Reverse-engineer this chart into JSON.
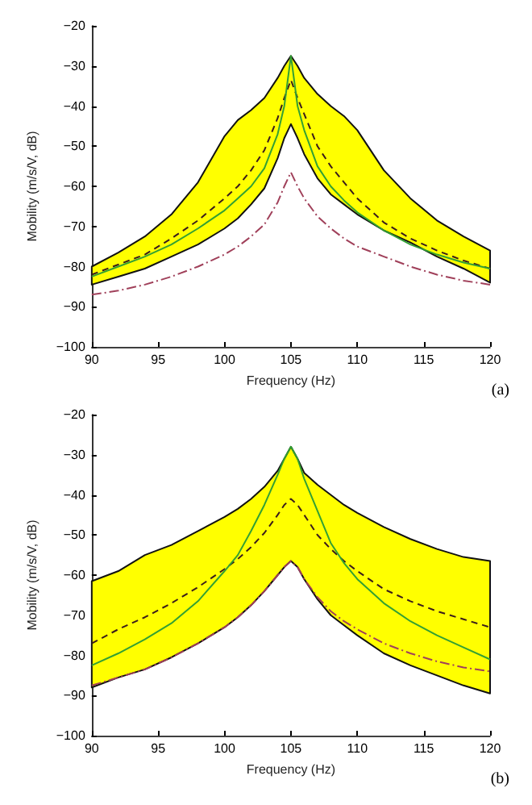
{
  "chart_data": [
    {
      "type": "line",
      "xlabel": "Frequency (Hz)",
      "ylabel": "Mobility (m/s/V, dB)",
      "annotations": [
        "(a)"
      ],
      "x": [
        90,
        92,
        94,
        96,
        98,
        100,
        101,
        102,
        103,
        104,
        104.5,
        105,
        105.5,
        106,
        107,
        108,
        109,
        110,
        112,
        114,
        116,
        118,
        120
      ],
      "xlim": [
        90,
        120
      ],
      "xticks": [
        90,
        95,
        100,
        105,
        110,
        115,
        120
      ],
      "ylim": [
        -100,
        -20
      ],
      "yticks": [
        -100,
        -90,
        -80,
        -70,
        -60,
        -50,
        -40,
        -30,
        -20
      ],
      "grid": false,
      "marker": "none",
      "series": [
        {
          "color": "#3a1c1c",
          "line_style": "dashed",
          "values": [
            -82,
            -79.5,
            -77,
            -73,
            -68.5,
            -63,
            -60,
            -56,
            -51,
            -43,
            -38,
            -33.5,
            -38,
            -42,
            -50,
            -55,
            -59,
            -63,
            -69,
            -73,
            -76,
            -78.5,
            -80.5
          ],
          "lower": [
            -84.5,
            -82.5,
            -80.5,
            -77.5,
            -74.5,
            -70.5,
            -68,
            -64.5,
            -60.5,
            -53,
            -48,
            -44.5,
            -48,
            -52,
            -58,
            -62,
            -64.5,
            -67,
            -71,
            -74,
            -77.5,
            -80.5,
            -84
          ],
          "upper": [
            -80,
            -76.5,
            -72.5,
            -67,
            -59,
            -47.5,
            -43.5,
            -41,
            -38,
            -33,
            -30,
            -27.5,
            -30,
            -33,
            -37,
            -40,
            -42.5,
            -46,
            -56,
            -63,
            -68.5,
            -72.5,
            -76
          ]
        },
        {
          "color": "#33a033",
          "line_style": "solid",
          "values": [
            -82.5,
            -80,
            -77.5,
            -74.5,
            -70.5,
            -66,
            -63,
            -60,
            -55.5,
            -47,
            -40,
            -27.5,
            -40,
            -46,
            -55,
            -60,
            -63.5,
            -66.5,
            -71,
            -74.5,
            -77,
            -79,
            -80.5
          ]
        },
        {
          "color": "#a0405a",
          "line_style": "dashdot",
          "values": [
            -87,
            -86,
            -84.5,
            -82.5,
            -80,
            -77,
            -75,
            -72.5,
            -69.5,
            -64,
            -60,
            -56.5,
            -60,
            -63,
            -67.5,
            -70.5,
            -73,
            -75,
            -77.5,
            -80,
            -82,
            -83.5,
            -84.5
          ]
        }
      ]
    },
    {
      "type": "line",
      "xlabel": "Frequency (Hz)",
      "ylabel": "Mobility (m/s/V, dB)",
      "annotations": [
        "(b)"
      ],
      "x": [
        90,
        92,
        94,
        96,
        98,
        100,
        101,
        102,
        103,
        104,
        104.5,
        105,
        105.5,
        106,
        107,
        108,
        109,
        110,
        112,
        114,
        116,
        118,
        120
      ],
      "xlim": [
        90,
        120
      ],
      "xticks": [
        90,
        95,
        100,
        105,
        110,
        115,
        120
      ],
      "ylim": [
        -100,
        -20
      ],
      "yticks": [
        -100,
        -90,
        -80,
        -70,
        -60,
        -50,
        -40,
        -30,
        -20
      ],
      "grid": false,
      "marker": "none",
      "series": [
        {
          "color": "#3a1c1c",
          "line_style": "dashed",
          "values": [
            -77,
            -73.5,
            -70.5,
            -67,
            -63,
            -58.5,
            -56,
            -53,
            -49.5,
            -45,
            -42.5,
            -41,
            -42.5,
            -45,
            -50,
            -53.5,
            -56.5,
            -59,
            -63.5,
            -66.5,
            -69,
            -71,
            -73
          ],
          "lower": [
            -88,
            -85.5,
            -83.5,
            -80.5,
            -77,
            -73,
            -70.5,
            -67.5,
            -64,
            -60,
            -58,
            -56.5,
            -58,
            -61,
            -66,
            -70,
            -72.5,
            -75,
            -79.5,
            -82.5,
            -85,
            -87.5,
            -89.5
          ],
          "upper": [
            -61.5,
            -59,
            -55,
            -52.5,
            -49,
            -45.5,
            -43.5,
            -41,
            -38,
            -34,
            -31,
            -28,
            -31,
            -34.5,
            -37.5,
            -40,
            -42.5,
            -44.5,
            -48,
            -51,
            -53.5,
            -55.5,
            -56.5
          ]
        },
        {
          "color": "#33a033",
          "line_style": "solid",
          "values": [
            -82.5,
            -79.5,
            -76,
            -72,
            -66.5,
            -59,
            -55,
            -49,
            -42.5,
            -35,
            -31,
            -28,
            -31,
            -36,
            -44,
            -52,
            -57,
            -61,
            -67,
            -71.5,
            -75,
            -78,
            -81
          ]
        },
        {
          "color": "#a0405a",
          "line_style": "dashdot",
          "values": [
            -87.5,
            -85.5,
            -83.5,
            -80.5,
            -77,
            -73,
            -70.5,
            -67.5,
            -64,
            -60,
            -58,
            -56.5,
            -58,
            -61,
            -65.5,
            -69,
            -71.5,
            -73.5,
            -77,
            -79.5,
            -81.5,
            -83,
            -84
          ]
        }
      ]
    }
  ]
}
